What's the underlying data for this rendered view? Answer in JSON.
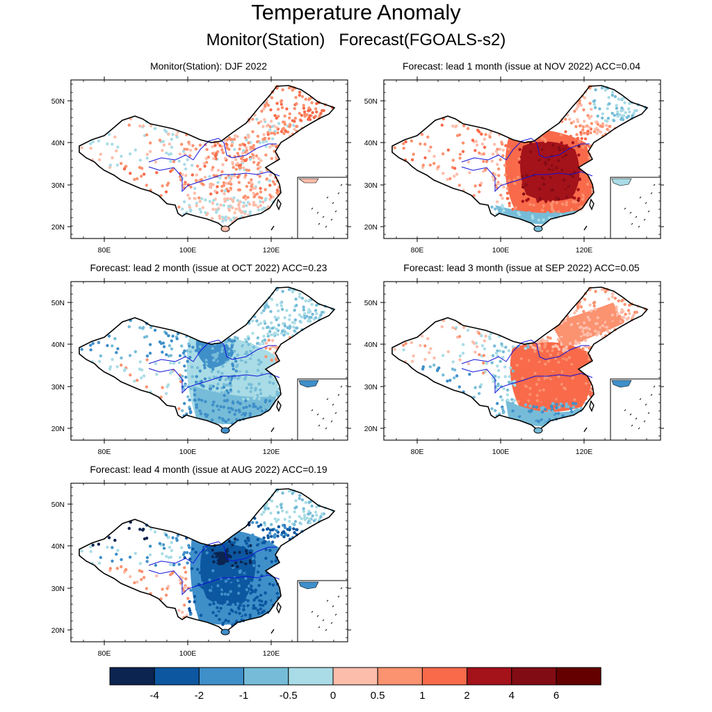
{
  "figure": {
    "title": "Temperature Anomaly",
    "subtitle": "Monitor(Station)   Forecast(FGOALS-s2)"
  },
  "lon_ticks": [
    "80E",
    "100E",
    "120E"
  ],
  "lat_ticks": [
    "50N",
    "40N",
    "30N",
    "20N"
  ],
  "axis_ranges": {
    "lon": [
      72,
      138
    ],
    "lat": [
      17,
      55
    ]
  },
  "panels": [
    {
      "title": "Monitor(Station): DJF 2022",
      "pattern": "monitor"
    },
    {
      "title": "Forecast: lead 1 month (issue at NOV 2022) ACC=0.04",
      "pattern": "lead1"
    },
    {
      "title": "Forecast: lead 2 month (issue at OCT 2022) ACC=0.23",
      "pattern": "lead2"
    },
    {
      "title": "Forecast: lead 3 month (issue at SEP 2022) ACC=0.05",
      "pattern": "lead3"
    },
    {
      "title": "Forecast: lead 4 month (issue at AUG 2022) ACC=0.19",
      "pattern": "lead4"
    }
  ],
  "colorbar": {
    "labels": [
      "-4",
      "-2",
      "-1",
      "-0.5",
      "0",
      "0.5",
      "1",
      "2",
      "4",
      "6"
    ],
    "colors": [
      "#0b2450",
      "#0c57a0",
      "#3f8fc9",
      "#76bcd8",
      "#a9dce6",
      "#fdbdab",
      "#fb9270",
      "#f86a4a",
      "#a4121a",
      "#820c14",
      "#640000"
    ]
  },
  "colors": {
    "river": "#1010d8",
    "border": "#000000"
  }
}
